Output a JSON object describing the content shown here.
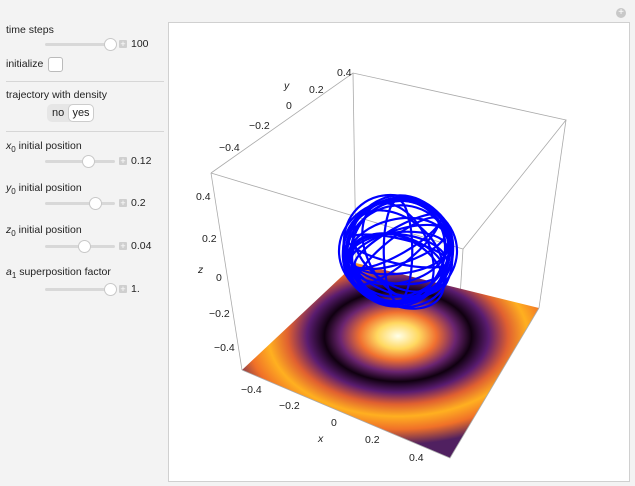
{
  "controls": {
    "time_steps": {
      "label": "time steps",
      "value": "100",
      "fraction": 0.93
    },
    "initialize": {
      "label": "initialize",
      "checked": false
    },
    "trajectory": {
      "label": "trajectory with density",
      "options": [
        "no",
        "yes"
      ],
      "selected": "yes"
    },
    "x0": {
      "var": "x",
      "sub": "0",
      "label": " initial position",
      "value": "0.12",
      "fraction": 0.62
    },
    "y0": {
      "var": "y",
      "sub": "0",
      "label": " initial position",
      "value": "0.2",
      "fraction": 0.7
    },
    "z0": {
      "var": "z",
      "sub": "0",
      "label": " initial position",
      "value": "0.04",
      "fraction": 0.54
    },
    "a1": {
      "var": "a",
      "sub": "1",
      "label": " superposition factor",
      "value": "1.",
      "fraction": 0.93
    }
  },
  "plot": {
    "x_axis": {
      "label": "x",
      "ticks": [
        "−0.4",
        "−0.2",
        "0",
        "0.2",
        "0.4"
      ]
    },
    "y_axis": {
      "label": "y",
      "ticks": [
        "−0.4",
        "−0.2",
        "0",
        "0.2",
        "0.4"
      ]
    },
    "z_axis": {
      "label": "z",
      "ticks": [
        "0.4",
        "0.2",
        "0",
        "−0.2",
        "−0.4"
      ]
    },
    "trajectory_color": "#0000ff"
  }
}
